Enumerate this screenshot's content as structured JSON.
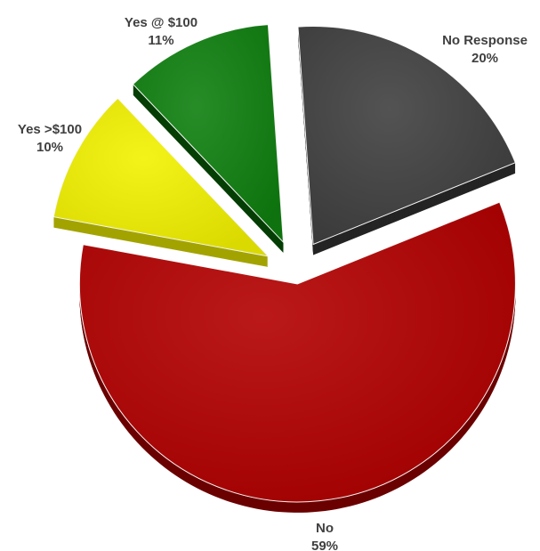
{
  "chart_data": {
    "type": "pie",
    "style": "3d-exploded",
    "title": "",
    "legend": "none",
    "slices": [
      {
        "label": "No Response",
        "value": 20,
        "percent_label": "20%",
        "color": "#404040",
        "side_color": "#242424"
      },
      {
        "label": "No",
        "value": 59,
        "percent_label": "59%",
        "color": "#b30000",
        "side_color": "#6b0000"
      },
      {
        "label": "Yes >$100",
        "value": 10,
        "percent_label": "10%",
        "color": "#f2f200",
        "side_color": "#a3a300"
      },
      {
        "label": "Yes @ $100",
        "value": 11,
        "percent_label": "11%",
        "color": "#0f800f",
        "side_color": "#063f06"
      }
    ]
  }
}
